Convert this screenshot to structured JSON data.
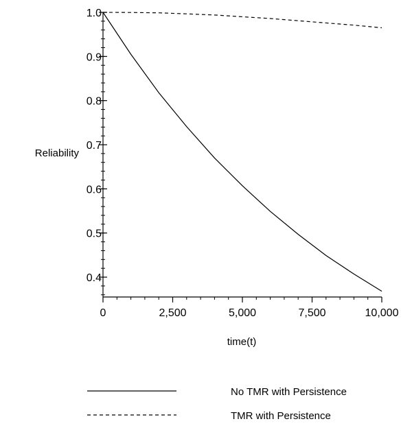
{
  "chart_data": {
    "type": "line",
    "title": "",
    "xlabel": "time(t)",
    "ylabel": "Reliability",
    "xlim": [
      0,
      10000
    ],
    "ylim": [
      0.355,
      1.0
    ],
    "grid": false,
    "legend_position": "bottom",
    "x_ticks": [
      0,
      2500,
      5000,
      7500,
      10000
    ],
    "x_tick_labels": [
      "0",
      "2,500",
      "5,000",
      "7,500",
      "10,000"
    ],
    "y_ticks": [
      0.4,
      0.5,
      0.6,
      0.7,
      0.8,
      0.9,
      1.0
    ],
    "y_tick_labels": [
      "0.4",
      "0.5",
      "0.6",
      "0.7",
      "0.8",
      "0.9",
      "1.0"
    ],
    "series": [
      {
        "name": "No TMR with Persistence",
        "style": "solid",
        "color": "#000000",
        "x": [
          0,
          1000,
          2000,
          3000,
          4000,
          5000,
          6000,
          7000,
          8000,
          9000,
          10000
        ],
        "y": [
          1.0,
          0.905,
          0.818,
          0.741,
          0.67,
          0.607,
          0.549,
          0.497,
          0.449,
          0.407,
          0.368
        ]
      },
      {
        "name": "TMR with Persistence",
        "style": "dashed",
        "color": "#000000",
        "x": [
          0,
          1000,
          2000,
          3000,
          4000,
          5000,
          6000,
          7000,
          8000,
          9000,
          10000
        ],
        "y": [
          1.0,
          0.9997,
          0.9989,
          0.9966,
          0.994,
          0.99,
          0.986,
          0.981,
          0.976,
          0.971,
          0.965
        ]
      }
    ]
  }
}
